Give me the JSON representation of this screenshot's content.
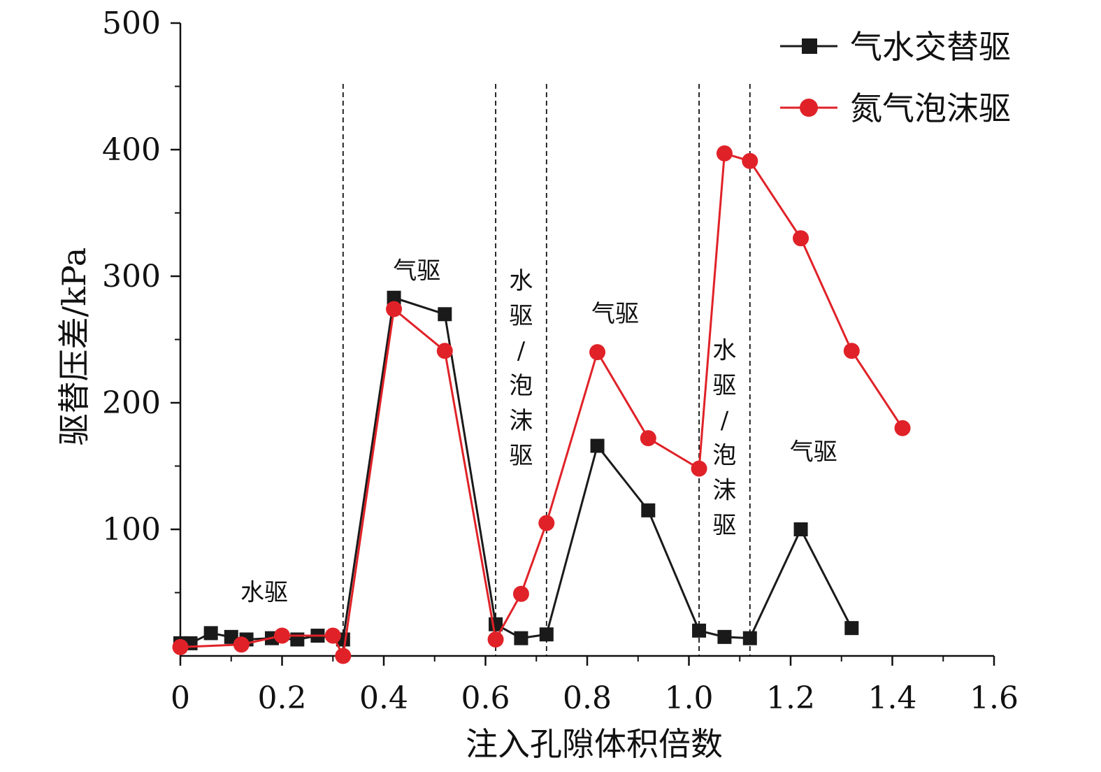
{
  "chart_data": {
    "type": "line",
    "xlabel": "注入孔隙体积倍数",
    "ylabel": "驱替压差/kPa",
    "xlim": [
      0,
      1.6
    ],
    "ylim": [
      0,
      500
    ],
    "xticks": [
      0,
      0.2,
      0.4,
      0.6,
      0.8,
      1.0,
      1.2,
      1.4,
      1.6
    ],
    "xtick_labels": [
      "0",
      "0.2",
      "0.4",
      "0.6",
      "0.8",
      "1.0",
      "1.2",
      "1.4",
      "1.6"
    ],
    "yticks": [
      100,
      200,
      300,
      400,
      500
    ],
    "ytick_labels": [
      "100",
      "200",
      "300",
      "400",
      "500"
    ],
    "legend_position": "top-right",
    "grid": false,
    "series": [
      {
        "name": "气水交替驱",
        "color": "#1a1a1a",
        "marker": "square",
        "points": [
          [
            0.0,
            10
          ],
          [
            0.02,
            10
          ],
          [
            0.06,
            18
          ],
          [
            0.1,
            15
          ],
          [
            0.13,
            13
          ],
          [
            0.18,
            14
          ],
          [
            0.23,
            13
          ],
          [
            0.27,
            16
          ],
          [
            0.32,
            13
          ],
          [
            0.42,
            283
          ],
          [
            0.52,
            270
          ],
          [
            0.62,
            25
          ],
          [
            0.67,
            14
          ],
          [
            0.72,
            17
          ],
          [
            0.82,
            166
          ],
          [
            0.92,
            115
          ],
          [
            1.02,
            20
          ],
          [
            1.07,
            15
          ],
          [
            1.12,
            14
          ],
          [
            1.22,
            100
          ],
          [
            1.32,
            22
          ]
        ]
      },
      {
        "name": "氮气泡沫驱",
        "color": "#e02228",
        "marker": "circle",
        "points": [
          [
            0.0,
            7
          ],
          [
            0.12,
            9
          ],
          [
            0.2,
            16
          ],
          [
            0.3,
            16
          ],
          [
            0.32,
            0
          ],
          [
            0.42,
            274
          ],
          [
            0.52,
            241
          ],
          [
            0.62,
            13
          ],
          [
            0.67,
            49
          ],
          [
            0.72,
            105
          ],
          [
            0.82,
            240
          ],
          [
            0.92,
            172
          ],
          [
            1.02,
            148
          ],
          [
            1.07,
            397
          ],
          [
            1.12,
            391
          ],
          [
            1.22,
            330
          ],
          [
            1.32,
            241
          ],
          [
            1.42,
            180
          ]
        ]
      }
    ],
    "phase_dividers": [
      0.32,
      0.62,
      0.72,
      1.02,
      1.12
    ],
    "phase_labels": [
      {
        "text": "水驱",
        "x": 0.165,
        "y": 44
      },
      {
        "text": "气驱",
        "x": 0.465,
        "y": 298
      },
      {
        "text": "水驱/泡沫驱",
        "x": 0.67,
        "y": 290
      },
      {
        "text": "气驱",
        "x": 0.855,
        "y": 264
      },
      {
        "text": "水驱/泡沫驱",
        "x": 1.07,
        "y": 235
      },
      {
        "text": "气驱",
        "x": 1.245,
        "y": 155
      }
    ]
  }
}
